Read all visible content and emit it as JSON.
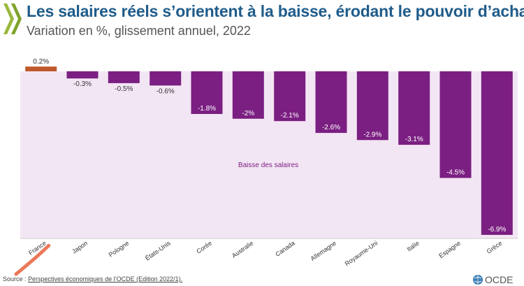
{
  "header": {
    "title": "Les salaires réels s’orientent à la baisse, érodant le pouvoir d’achat",
    "subtitle": "Variation en %, glissement annuel, 2022"
  },
  "chart_data": {
    "type": "bar",
    "categories": [
      "France",
      "Japon",
      "Pologne",
      "États-Unis",
      "Corée",
      "Australie",
      "Canada",
      "Allemagne",
      "Royaume-Uni",
      "Italie",
      "Espagne",
      "Grèce"
    ],
    "values": [
      0.2,
      -0.3,
      -0.5,
      -0.6,
      -1.8,
      -2,
      -2.1,
      -2.6,
      -2.9,
      -3.1,
      -4.5,
      -6.9
    ],
    "value_labels": [
      "0.2%",
      "-0.3%",
      "-0.5%",
      "-0.6%",
      "-1.8%",
      "-2%",
      "-2.1%",
      "-2.6%",
      "-2.9%",
      "-3.1%",
      "-4.5%",
      "-6.9%"
    ],
    "title": "Les salaires réels s’orientent à la baisse, érodant le pouvoir d’achat",
    "subtitle": "Variation en %, glissement annuel, 2022",
    "annotation": "Baisse des salaires",
    "ylim": [
      -7.3,
      0.6
    ],
    "grid": false,
    "colors": {
      "positive": "#c0582a",
      "negative": "#7b1f82",
      "background_band": "#f3e6f4",
      "highlight_label": "#e8603c"
    }
  },
  "footer": {
    "source_prefix": "Source : ",
    "source_link": "Perspectives économiques de l’OCDE (Edition 2022/1).",
    "logo_text": "OCDE"
  }
}
